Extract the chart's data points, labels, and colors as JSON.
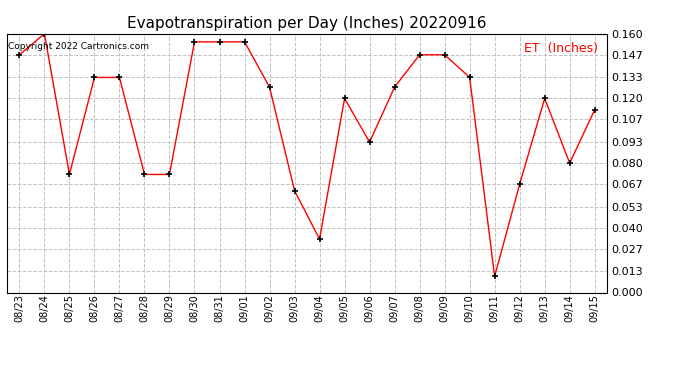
{
  "title": "Evapotranspiration per Day (Inches) 20220916",
  "legend_label": "ET  (Inches)",
  "copyright_text": "Copyright 2022 Cartronics.com",
  "dates": [
    "08/23",
    "08/24",
    "08/25",
    "08/26",
    "08/27",
    "08/28",
    "08/29",
    "08/30",
    "08/31",
    "09/01",
    "09/02",
    "09/03",
    "09/04",
    "09/05",
    "09/06",
    "09/07",
    "09/08",
    "09/09",
    "09/10",
    "09/11",
    "09/12",
    "09/13",
    "09/14",
    "09/15"
  ],
  "values": [
    0.147,
    0.16,
    0.073,
    0.133,
    0.133,
    0.073,
    0.073,
    0.155,
    0.155,
    0.155,
    0.127,
    0.063,
    0.033,
    0.12,
    0.093,
    0.127,
    0.147,
    0.147,
    0.133,
    0.01,
    0.067,
    0.12,
    0.08,
    0.113
  ],
  "ylim": [
    0.0,
    0.16
  ],
  "yticks": [
    0.0,
    0.013,
    0.027,
    0.04,
    0.053,
    0.067,
    0.08,
    0.093,
    0.107,
    0.12,
    0.133,
    0.147,
    0.16
  ],
  "line_color": "red",
  "marker_color": "black",
  "background_color": "white",
  "grid_color": "#bbbbbb",
  "title_fontsize": 11,
  "legend_color": "red",
  "legend_fontsize": 9,
  "copyright_color": "black",
  "copyright_fontsize": 6.5,
  "tick_labelsize": 8,
  "xtick_labelsize": 7
}
